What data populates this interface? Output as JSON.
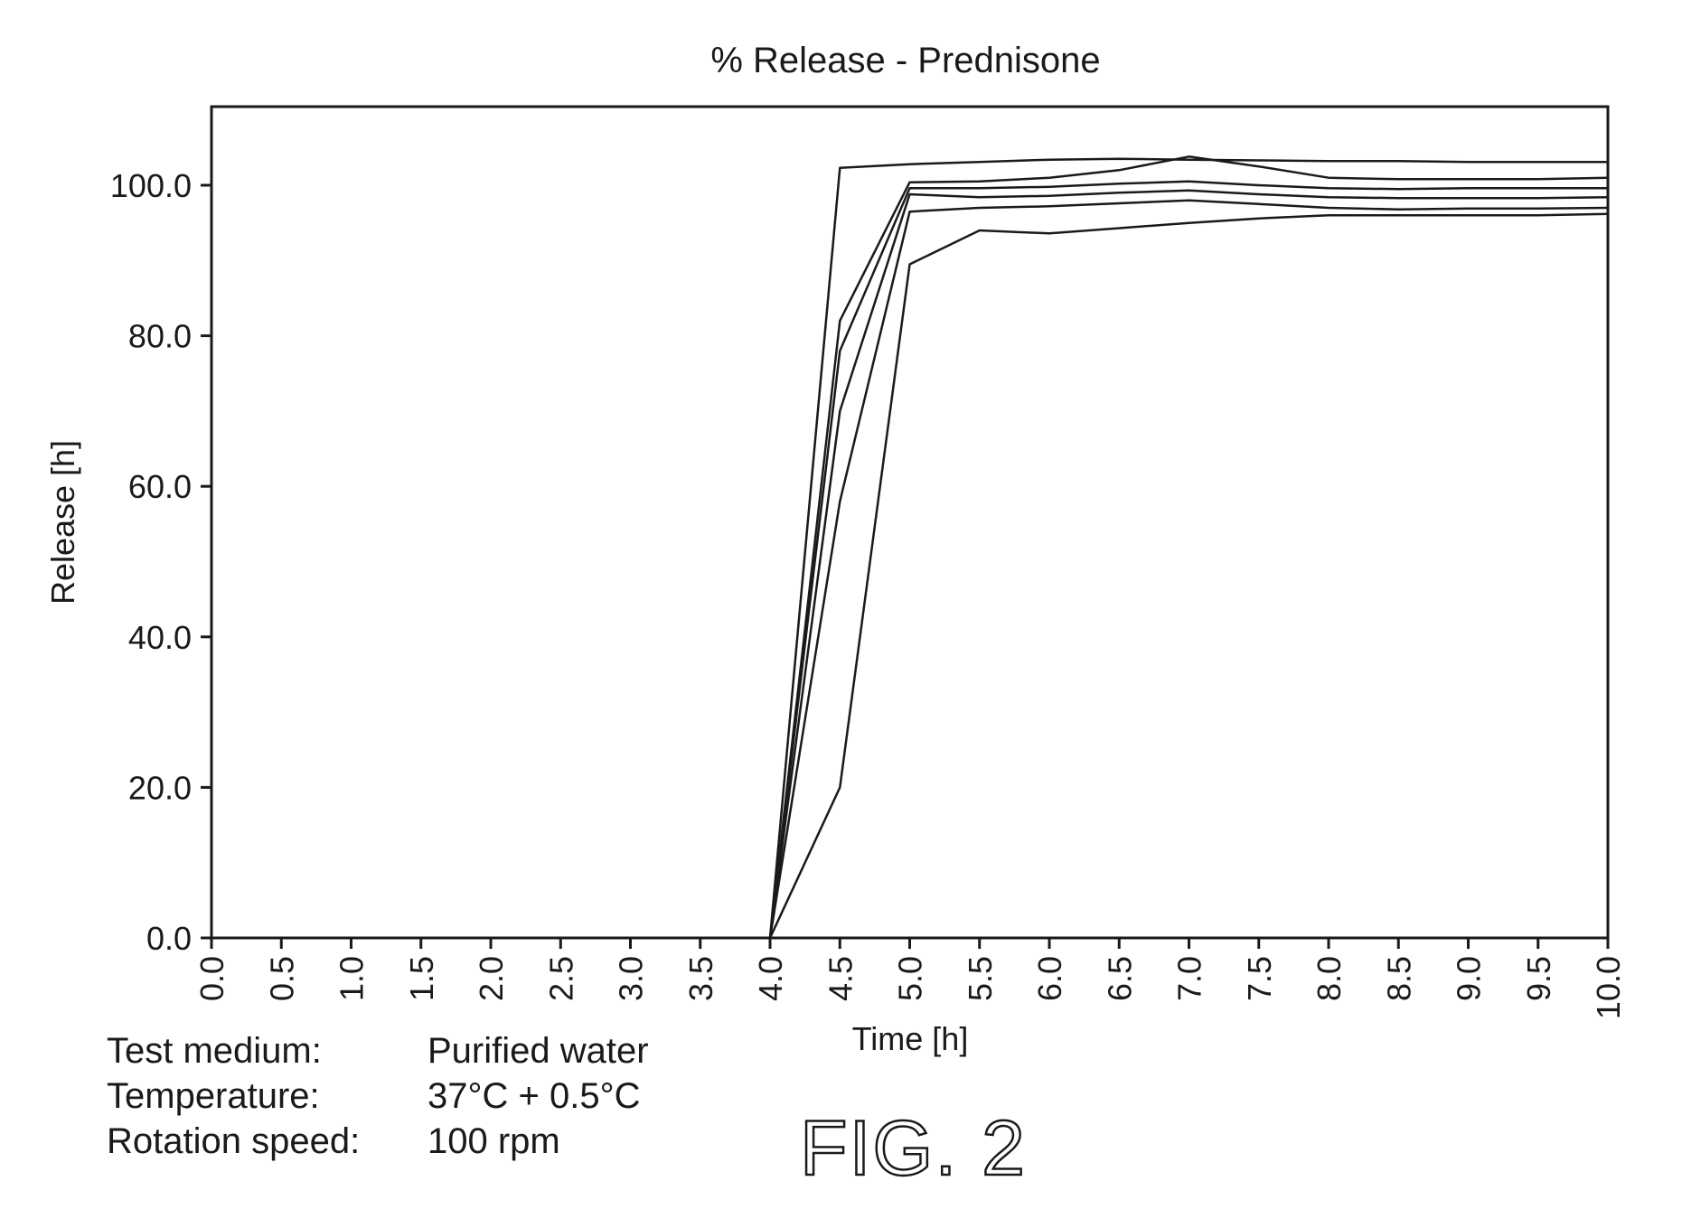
{
  "chart_data": {
    "type": "line",
    "title": "% Release - Prednisone",
    "xlabel": "Time [h]",
    "ylabel": "Release [h]",
    "xlim": [
      0,
      10
    ],
    "ylim": [
      0,
      110
    ],
    "grid": false,
    "x_ticks": [
      "0.0",
      "0.5",
      "1.0",
      "1.5",
      "2.0",
      "2.5",
      "3.0",
      "3.5",
      "4.0",
      "4.5",
      "5.0",
      "5.5",
      "6.0",
      "6.5",
      "7.0",
      "7.5",
      "8.0",
      "8.5",
      "9.0",
      "9.5",
      "10.0"
    ],
    "y_ticks": [
      "0.0",
      "20.0",
      "40.0",
      "60.0",
      "80.0",
      "100.0"
    ],
    "line_color": "#1a1a1a",
    "series": [
      {
        "x": [
          0,
          4.0,
          4.5,
          5.0,
          5.5,
          6.0,
          6.5,
          7.0,
          7.5,
          8.0,
          8.5,
          9.0,
          9.5,
          10.0
        ],
        "y": [
          0,
          0,
          102.3,
          102.8,
          103.1,
          103.4,
          103.5,
          103.4,
          103.3,
          103.2,
          103.2,
          103.1,
          103.1,
          103.1
        ]
      },
      {
        "x": [
          0,
          4.0,
          4.5,
          5.0,
          5.5,
          6.0,
          6.5,
          7.0,
          7.5,
          8.0,
          8.5,
          9.0,
          9.5,
          10.0
        ],
        "y": [
          0,
          0,
          82,
          100.4,
          100.5,
          101.0,
          102.0,
          103.8,
          102.5,
          101.0,
          100.8,
          100.8,
          100.8,
          101.0
        ]
      },
      {
        "x": [
          0,
          4.0,
          4.5,
          5.0,
          5.5,
          6.0,
          6.5,
          7.0,
          7.5,
          8.0,
          8.5,
          9.0,
          9.5,
          10.0
        ],
        "y": [
          0,
          0,
          78,
          99.6,
          99.6,
          99.8,
          100.2,
          100.5,
          100.0,
          99.6,
          99.5,
          99.6,
          99.6,
          99.6
        ]
      },
      {
        "x": [
          0,
          4.0,
          4.5,
          5.0,
          5.5,
          6.0,
          6.5,
          7.0,
          7.5,
          8.0,
          8.5,
          9.0,
          9.5,
          10.0
        ],
        "y": [
          0,
          0,
          70,
          98.8,
          98.4,
          98.6,
          99.0,
          99.3,
          98.8,
          98.4,
          98.3,
          98.3,
          98.3,
          98.4
        ]
      },
      {
        "x": [
          0,
          4.0,
          4.5,
          5.0,
          5.5,
          6.0,
          6.5,
          7.0,
          7.5,
          8.0,
          8.5,
          9.0,
          9.5,
          10.0
        ],
        "y": [
          0,
          0,
          58,
          96.5,
          97.0,
          97.2,
          97.6,
          98.0,
          97.5,
          97.0,
          96.8,
          96.9,
          96.9,
          97.0
        ]
      },
      {
        "x": [
          0,
          4.0,
          4.5,
          5.0,
          5.5,
          6.0,
          6.5,
          7.0,
          7.5,
          8.0,
          8.5,
          9.0,
          9.5,
          10.0
        ],
        "y": [
          0,
          0,
          20,
          89.5,
          94.0,
          93.6,
          94.3,
          95.0,
          95.6,
          96.0,
          96.0,
          96.0,
          96.0,
          96.2
        ]
      }
    ]
  },
  "conditions": [
    {
      "label": "Test medium:",
      "value": "Purified water"
    },
    {
      "label": "Temperature:",
      "value": "37°C + 0.5°C"
    },
    {
      "label": "Rotation speed:",
      "value": "100 rpm"
    }
  ],
  "figure_label": "FIG. 2"
}
